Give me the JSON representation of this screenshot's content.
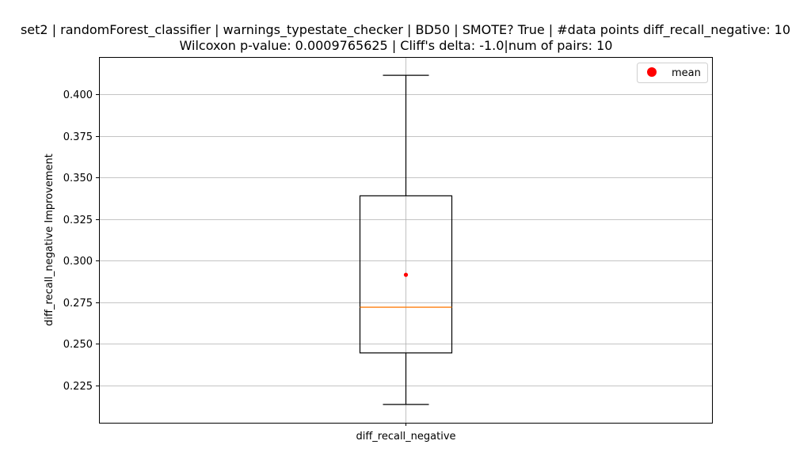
{
  "chart_data": {
    "type": "box",
    "title_line1": "set2 | randomForest_classifier | warnings_typestate_checker | BD50 | SMOTE? True | #data points diff_recall_negative: 10",
    "title_line2": "Wilcoxon p-value: 0.0009765625 | Cliff's delta: -1.0|num of pairs: 10",
    "xlabel": "",
    "ylabel": "diff_recall_negative Improvement",
    "categories": [
      "diff_recall_negative"
    ],
    "ylim": [
      0.2025,
      0.4225
    ],
    "yticks": [
      0.225,
      0.25,
      0.275,
      0.3,
      0.325,
      0.35,
      0.375,
      0.4
    ],
    "ytick_labels": [
      "0.225",
      "0.250",
      "0.275",
      "0.300",
      "0.325",
      "0.350",
      "0.375",
      "0.400"
    ],
    "grid": true,
    "boxes": [
      {
        "name": "diff_recall_negative",
        "whisker_low": 0.2135,
        "q1": 0.2445,
        "median": 0.272,
        "q3": 0.339,
        "whisker_high": 0.4115,
        "mean": 0.2915
      }
    ],
    "legend": {
      "entries": [
        "mean"
      ],
      "position": "top-right"
    },
    "colors": {
      "box": "#000000",
      "median": "#ff7f0e",
      "mean": "#ff0000",
      "grid": "#b0b0b0"
    }
  }
}
